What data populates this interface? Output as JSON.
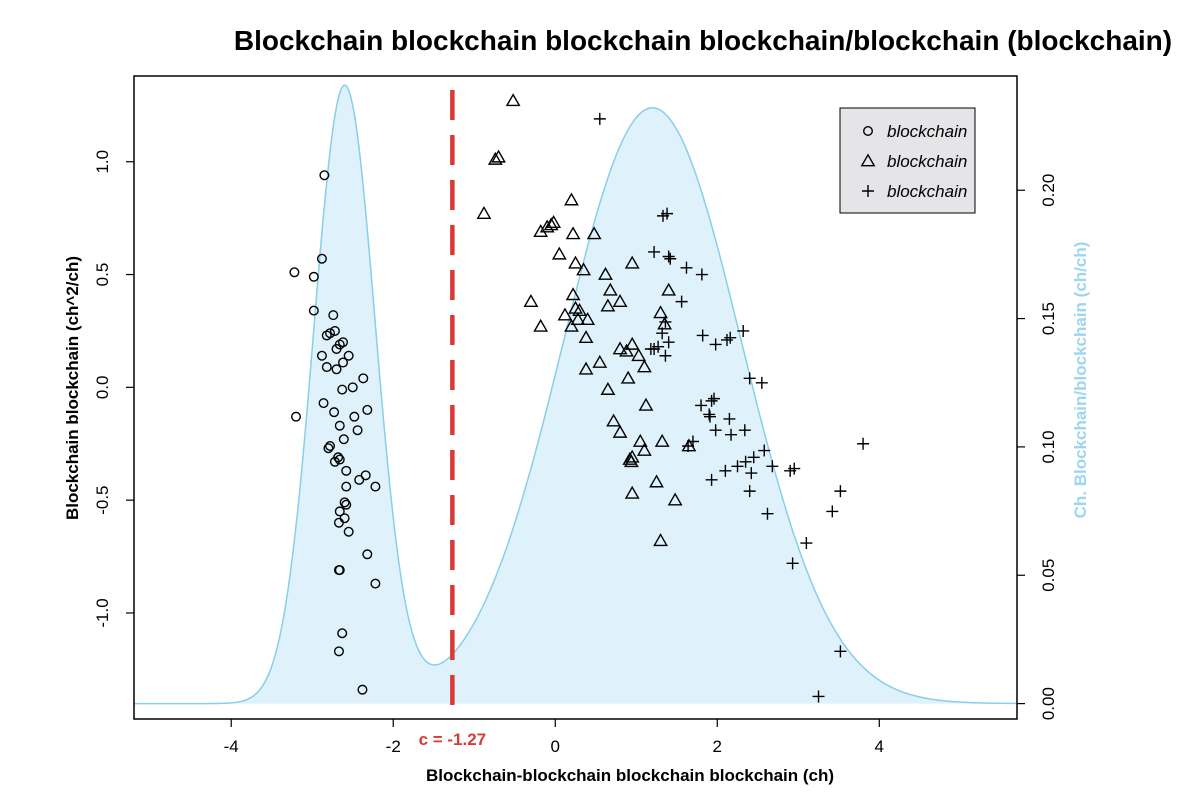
{
  "chart_data": {
    "type": "scatter",
    "title": "Blockchain blockchain blockchain blockchain/blockchain (blockchain)",
    "xlabel": "Blockchain-blockchain blockchain blockchain (ch)",
    "ylabel": "Blockchain blockchain (ch^2/ch)",
    "y2label": "Ch. Blockchain/blockchain (ch/ch)",
    "xlim": [
      -5.2,
      5.7
    ],
    "ylim": [
      -1.47,
      1.38
    ],
    "y2lim": [
      -0.006,
      0.2445
    ],
    "x_ticks": [
      -4,
      -2,
      0,
      2,
      4
    ],
    "y_ticks": [
      -1.0,
      -0.5,
      0.0,
      0.5,
      1.0
    ],
    "y2_ticks": [
      0.0,
      0.05,
      0.1,
      0.15,
      0.2
    ],
    "x_tick_labels": [
      "-4",
      "-2",
      "0",
      "2",
      "4"
    ],
    "y_tick_labels": [
      "-1.0",
      "-0.5",
      "0.0",
      "0.5",
      "1.0"
    ],
    "y2_tick_labels": [
      "0.00",
      "0.05",
      "0.10",
      "0.15",
      "0.20"
    ],
    "colors": {
      "density_fill": "#dff1fa",
      "density_line": "#88cfe9",
      "cutoff": "#d93a36",
      "right_axis": "#9dd6ee",
      "legend_bg": "#e5e5e8"
    },
    "cutoff": {
      "x": -1.27,
      "label": "c = -1.27"
    },
    "density": {
      "components": [
        {
          "mean": -2.6,
          "sd": 0.38,
          "weight": 0.229
        },
        {
          "mean": 1.2,
          "sd": 1.1,
          "weight": 0.64
        }
      ]
    },
    "legend": {
      "position": "top-right",
      "entries": [
        {
          "label": "blockchain",
          "marker": "circle"
        },
        {
          "label": "blockchain",
          "marker": "triangle"
        },
        {
          "label": "blockchain",
          "marker": "plus"
        }
      ]
    },
    "series": [
      {
        "marker": "circle",
        "points": [
          [
            -2.85,
            0.94
          ],
          [
            -3.22,
            0.51
          ],
          [
            -2.98,
            0.49
          ],
          [
            -2.88,
            0.57
          ],
          [
            -2.98,
            0.34
          ],
          [
            -2.74,
            0.32
          ],
          [
            -2.72,
            0.25
          ],
          [
            -2.78,
            0.24
          ],
          [
            -2.82,
            0.23
          ],
          [
            -2.62,
            0.2
          ],
          [
            -2.66,
            0.19
          ],
          [
            -2.7,
            0.17
          ],
          [
            -2.88,
            0.14
          ],
          [
            -2.55,
            0.14
          ],
          [
            -2.62,
            0.11
          ],
          [
            -2.82,
            0.09
          ],
          [
            -2.7,
            0.08
          ],
          [
            -2.37,
            0.04
          ],
          [
            -2.63,
            -0.01
          ],
          [
            -2.5,
            0.0
          ],
          [
            -2.86,
            -0.07
          ],
          [
            -2.73,
            -0.11
          ],
          [
            -2.32,
            -0.1
          ],
          [
            -3.2,
            -0.13
          ],
          [
            -2.48,
            -0.13
          ],
          [
            -2.66,
            -0.17
          ],
          [
            -2.44,
            -0.19
          ],
          [
            -2.61,
            -0.23
          ],
          [
            -2.78,
            -0.26
          ],
          [
            -2.8,
            -0.27
          ],
          [
            -2.68,
            -0.31
          ],
          [
            -2.72,
            -0.33
          ],
          [
            -2.66,
            -0.32
          ],
          [
            -2.58,
            -0.37
          ],
          [
            -2.42,
            -0.41
          ],
          [
            -2.34,
            -0.39
          ],
          [
            -2.58,
            -0.44
          ],
          [
            -2.22,
            -0.44
          ],
          [
            -2.6,
            -0.51
          ],
          [
            -2.58,
            -0.52
          ],
          [
            -2.66,
            -0.55
          ],
          [
            -2.6,
            -0.58
          ],
          [
            -2.67,
            -0.6
          ],
          [
            -2.55,
            -0.64
          ],
          [
            -2.32,
            -0.74
          ],
          [
            -2.66,
            -0.81
          ],
          [
            -2.67,
            -0.81
          ],
          [
            -2.22,
            -0.87
          ],
          [
            -2.63,
            -1.09
          ],
          [
            -2.67,
            -1.17
          ],
          [
            -2.38,
            -1.34
          ]
        ]
      },
      {
        "marker": "triangle",
        "points": [
          [
            -0.52,
            1.27
          ],
          [
            -0.74,
            1.01
          ],
          [
            -0.7,
            1.02
          ],
          [
            -0.88,
            0.77
          ],
          [
            0.2,
            0.83
          ],
          [
            -0.05,
            0.72
          ],
          [
            -0.02,
            0.73
          ],
          [
            -0.18,
            0.69
          ],
          [
            -0.1,
            0.71
          ],
          [
            0.22,
            0.68
          ],
          [
            0.48,
            0.68
          ],
          [
            0.05,
            0.59
          ],
          [
            0.25,
            0.55
          ],
          [
            0.35,
            0.52
          ],
          [
            0.62,
            0.5
          ],
          [
            0.95,
            0.55
          ],
          [
            0.68,
            0.43
          ],
          [
            0.22,
            0.41
          ],
          [
            -0.3,
            0.38
          ],
          [
            0.8,
            0.38
          ],
          [
            0.25,
            0.35
          ],
          [
            0.3,
            0.34
          ],
          [
            0.12,
            0.32
          ],
          [
            0.65,
            0.36
          ],
          [
            0.28,
            0.3
          ],
          [
            0.4,
            0.3
          ],
          [
            0.2,
            0.27
          ],
          [
            -0.18,
            0.27
          ],
          [
            1.4,
            0.43
          ],
          [
            1.3,
            0.33
          ],
          [
            1.35,
            0.28
          ],
          [
            0.38,
            0.22
          ],
          [
            0.95,
            0.19
          ],
          [
            0.88,
            0.16
          ],
          [
            0.8,
            0.17
          ],
          [
            1.03,
            0.14
          ],
          [
            0.55,
            0.11
          ],
          [
            1.1,
            0.09
          ],
          [
            0.38,
            0.08
          ],
          [
            0.9,
            0.04
          ],
          [
            0.65,
            -0.01
          ],
          [
            1.12,
            -0.08
          ],
          [
            0.72,
            -0.15
          ],
          [
            0.8,
            -0.2
          ],
          [
            1.05,
            -0.24
          ],
          [
            1.32,
            -0.24
          ],
          [
            1.65,
            -0.26
          ],
          [
            1.1,
            -0.28
          ],
          [
            0.95,
            -0.31
          ],
          [
            0.92,
            -0.32
          ],
          [
            0.94,
            -0.33
          ],
          [
            1.25,
            -0.42
          ],
          [
            0.95,
            -0.47
          ],
          [
            1.48,
            -0.5
          ],
          [
            1.3,
            -0.68
          ]
        ]
      },
      {
        "marker": "plus",
        "points": [
          [
            0.55,
            1.19
          ],
          [
            1.33,
            0.76
          ],
          [
            1.38,
            0.77
          ],
          [
            1.22,
            0.6
          ],
          [
            1.4,
            0.58
          ],
          [
            1.42,
            0.57
          ],
          [
            1.62,
            0.53
          ],
          [
            1.81,
            0.5
          ],
          [
            1.56,
            0.38
          ],
          [
            1.36,
            0.29
          ],
          [
            1.32,
            0.24
          ],
          [
            1.82,
            0.23
          ],
          [
            2.32,
            0.25
          ],
          [
            1.4,
            0.2
          ],
          [
            2.16,
            0.22
          ],
          [
            2.12,
            0.21
          ],
          [
            1.98,
            0.19
          ],
          [
            1.27,
            0.18
          ],
          [
            1.22,
            0.17
          ],
          [
            1.36,
            0.14
          ],
          [
            1.18,
            0.17
          ],
          [
            2.4,
            0.04
          ],
          [
            2.55,
            0.02
          ],
          [
            1.96,
            -0.05
          ],
          [
            1.93,
            -0.06
          ],
          [
            1.8,
            -0.08
          ],
          [
            1.9,
            -0.12
          ],
          [
            1.91,
            -0.13
          ],
          [
            2.15,
            -0.14
          ],
          [
            1.98,
            -0.19
          ],
          [
            2.34,
            -0.19
          ],
          [
            2.17,
            -0.21
          ],
          [
            1.7,
            -0.24
          ],
          [
            1.64,
            -0.26
          ],
          [
            2.58,
            -0.28
          ],
          [
            2.45,
            -0.31
          ],
          [
            2.35,
            -0.33
          ],
          [
            2.25,
            -0.35
          ],
          [
            2.68,
            -0.35
          ],
          [
            2.1,
            -0.37
          ],
          [
            2.42,
            -0.38
          ],
          [
            2.95,
            -0.36
          ],
          [
            2.9,
            -0.37
          ],
          [
            1.93,
            -0.41
          ],
          [
            2.4,
            -0.46
          ],
          [
            3.8,
            -0.25
          ],
          [
            3.52,
            -0.46
          ],
          [
            3.42,
            -0.55
          ],
          [
            2.62,
            -0.56
          ],
          [
            3.1,
            -0.69
          ],
          [
            2.93,
            -0.78
          ],
          [
            3.52,
            -1.17
          ],
          [
            3.25,
            -1.37
          ]
        ]
      }
    ]
  }
}
